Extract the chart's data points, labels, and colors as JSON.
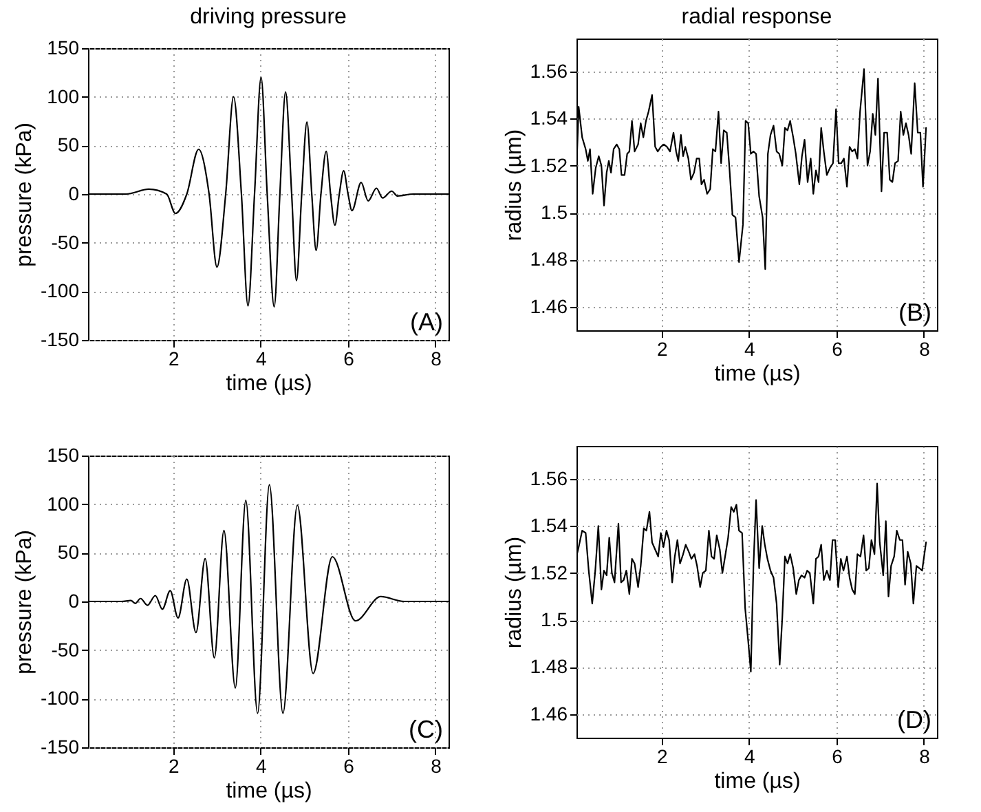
{
  "chart_data": [
    {
      "type": "line",
      "title": "driving pressure",
      "xlabel": "time (µs)",
      "ylabel": "pressure (kPa)",
      "annotations": [
        "(A)"
      ],
      "xlim": [
        0.05,
        8.3
      ],
      "ylim": [
        -150,
        150
      ],
      "xticks": [
        2,
        4,
        6,
        8
      ],
      "yticks": [
        -150,
        -100,
        -50,
        0,
        50,
        100,
        150
      ],
      "grid": true,
      "marker": "none",
      "line_style": "solid",
      "series": [
        {
          "color": "#000000",
          "x": [
            0.05,
            0.92,
            1.44,
            1.85,
            2.05,
            2.31,
            2.58,
            2.82,
            3.0,
            3.2,
            3.38,
            3.56,
            3.71,
            3.86,
            4.01,
            4.15,
            4.31,
            4.44,
            4.57,
            4.71,
            4.82,
            4.94,
            5.06,
            5.17,
            5.27,
            5.38,
            5.5,
            5.6,
            5.7,
            5.8,
            5.9,
            6.0,
            6.09,
            6.3,
            6.46,
            6.65,
            6.79,
            7.0,
            7.13,
            7.49,
            8.3
          ],
          "values": [
            0,
            0,
            5,
            0,
            -20,
            0,
            46,
            0,
            -75,
            0,
            100,
            0,
            -115,
            0,
            120,
            0,
            -116,
            0,
            105,
            0,
            -89,
            0,
            74,
            0,
            -58,
            0,
            44,
            0,
            -32,
            0,
            24,
            0,
            -17,
            12,
            -7,
            6,
            -4,
            3,
            -2,
            0,
            0
          ]
        }
      ]
    },
    {
      "type": "line",
      "title": "radial response",
      "xlabel": "time (µs)",
      "ylabel": "radius (µm)",
      "annotations": [
        "(B)"
      ],
      "xlim": [
        0.05,
        8.3
      ],
      "ylim": [
        1.45,
        1.574
      ],
      "xticks": [
        2,
        4,
        6,
        8
      ],
      "yticks": [
        1.46,
        1.48,
        1.5,
        1.52,
        1.54,
        1.56
      ],
      "grid": true,
      "marker": "none",
      "line_style": "solid",
      "series": [
        {
          "color": "#000000",
          "x": [
            0.05,
            0.1,
            0.18,
            0.26,
            0.31,
            0.36,
            0.42,
            0.49,
            0.56,
            0.62,
            0.68,
            0.74,
            0.79,
            0.84,
            0.9,
            0.97,
            1.03,
            1.08,
            1.15,
            1.21,
            1.26,
            1.32,
            1.38,
            1.46,
            1.52,
            1.58,
            1.64,
            1.7,
            1.78,
            1.85,
            1.91,
            1.98,
            2.05,
            2.12,
            2.19,
            2.27,
            2.33,
            2.38,
            2.44,
            2.49,
            2.54,
            2.61,
            2.67,
            2.74,
            2.8,
            2.86,
            2.91,
            2.97,
            3.04,
            3.11,
            3.17,
            3.23,
            3.3,
            3.36,
            3.42,
            3.49,
            3.55,
            3.62,
            3.69,
            3.77,
            3.86,
            3.92,
            3.98,
            4.04,
            4.1,
            4.16,
            4.23,
            4.31,
            4.37,
            4.43,
            4.49,
            4.56,
            4.63,
            4.69,
            4.76,
            4.82,
            4.88,
            4.94,
            5.01,
            5.07,
            5.15,
            5.21,
            5.27,
            5.34,
            5.41,
            5.47,
            5.53,
            5.59,
            5.65,
            5.71,
            5.78,
            5.85,
            5.92,
            5.99,
            6.05,
            6.11,
            6.17,
            6.24,
            6.3,
            6.36,
            6.42,
            6.48,
            6.54,
            6.63,
            6.71,
            6.77,
            6.83,
            6.89,
            6.95,
            7.03,
            7.09,
            7.16,
            7.22,
            7.28,
            7.34,
            7.41,
            7.47,
            7.53,
            7.59,
            7.65,
            7.71,
            7.79,
            7.86,
            7.92,
            7.98,
            8.05
          ],
          "values": [
            1.518,
            1.545,
            1.532,
            1.527,
            1.522,
            1.527,
            1.508,
            1.519,
            1.524,
            1.52,
            1.503,
            1.517,
            1.522,
            1.517,
            1.527,
            1.529,
            1.527,
            1.516,
            1.516,
            1.525,
            1.526,
            1.539,
            1.526,
            1.529,
            1.538,
            1.532,
            1.539,
            1.543,
            1.55,
            1.528,
            1.526,
            1.528,
            1.529,
            1.528,
            1.526,
            1.534,
            1.526,
            1.522,
            1.533,
            1.524,
            1.528,
            1.523,
            1.514,
            1.517,
            1.523,
            1.523,
            1.512,
            1.514,
            1.508,
            1.51,
            1.527,
            1.526,
            1.543,
            1.521,
            1.535,
            1.534,
            1.519,
            1.499,
            1.498,
            1.479,
            1.495,
            1.539,
            1.538,
            1.525,
            1.526,
            1.525,
            1.507,
            1.498,
            1.476,
            1.525,
            1.533,
            1.537,
            1.526,
            1.525,
            1.52,
            1.536,
            1.535,
            1.539,
            1.532,
            1.525,
            1.512,
            1.524,
            1.531,
            1.513,
            1.523,
            1.508,
            1.518,
            1.513,
            1.536,
            1.526,
            1.516,
            1.519,
            1.521,
            1.544,
            1.521,
            1.521,
            1.523,
            1.511,
            1.528,
            1.526,
            1.527,
            1.523,
            1.543,
            1.561,
            1.52,
            1.526,
            1.542,
            1.533,
            1.557,
            1.509,
            1.534,
            1.534,
            1.514,
            1.513,
            1.521,
            1.522,
            1.543,
            1.533,
            1.538,
            1.533,
            1.525,
            1.555,
            1.534,
            1.534,
            1.511,
            1.536
          ]
        }
      ]
    },
    {
      "type": "line",
      "xlabel": "time (µs)",
      "ylabel": "pressure (kPa)",
      "annotations": [
        "(C)"
      ],
      "xlim": [
        0.05,
        8.3
      ],
      "ylim": [
        -150,
        150
      ],
      "xticks": [
        2,
        4,
        6,
        8
      ],
      "yticks": [
        -150,
        -100,
        -50,
        0,
        50,
        100,
        150
      ],
      "grid": true,
      "marker": "none",
      "line_style": "solid",
      "series": [
        {
          "color": "#000000",
          "x": [
            0.05,
            0.82,
            1.03,
            1.13,
            1.25,
            1.41,
            1.59,
            1.75,
            1.93,
            2.11,
            2.31,
            2.52,
            2.73,
            2.94,
            3.16,
            3.42,
            3.66,
            3.93,
            4.2,
            4.51,
            4.84,
            5.2,
            5.64,
            6.17,
            6.75,
            7.28,
            8.3
          ],
          "values": [
            0,
            0,
            1,
            -2,
            3,
            -4,
            6,
            -8,
            11,
            -17,
            23,
            -32,
            44,
            -58,
            73,
            -89,
            104,
            -115,
            120,
            -115,
            99,
            -74,
            46,
            -20,
            5,
            0,
            0
          ]
        }
      ]
    },
    {
      "type": "line",
      "xlabel": "time (µs)",
      "ylabel": "radius (µm)",
      "annotations": [
        "(D)"
      ],
      "xlim": [
        0.05,
        8.3
      ],
      "ylim": [
        1.45,
        1.574
      ],
      "xticks": [
        2,
        4,
        6,
        8
      ],
      "yticks": [
        1.46,
        1.48,
        1.5,
        1.52,
        1.54,
        1.56
      ],
      "grid": true,
      "marker": "none",
      "line_style": "solid",
      "series": [
        {
          "color": "#000000",
          "x": [
            0.05,
            0.1,
            0.18,
            0.26,
            0.33,
            0.41,
            0.48,
            0.55,
            0.62,
            0.68,
            0.74,
            0.8,
            0.86,
            0.92,
            1.01,
            1.07,
            1.13,
            1.19,
            1.26,
            1.32,
            1.38,
            1.46,
            1.52,
            1.59,
            1.65,
            1.72,
            1.78,
            1.85,
            1.92,
            1.98,
            2.04,
            2.11,
            2.17,
            2.24,
            2.3,
            2.36,
            2.42,
            2.49,
            2.55,
            2.62,
            2.68,
            2.75,
            2.81,
            2.88,
            2.94,
            3.01,
            3.08,
            3.14,
            3.2,
            3.26,
            3.33,
            3.39,
            3.46,
            3.52,
            3.59,
            3.65,
            3.71,
            3.77,
            3.84,
            3.91,
            3.98,
            4.04,
            4.1,
            4.16,
            4.23,
            4.3,
            4.36,
            4.42,
            4.49,
            4.56,
            4.63,
            4.7,
            4.76,
            4.82,
            4.88,
            4.94,
            5.01,
            5.08,
            5.14,
            5.2,
            5.27,
            5.33,
            5.39,
            5.47,
            5.53,
            5.59,
            5.65,
            5.71,
            5.78,
            5.85,
            5.91,
            5.97,
            6.04,
            6.1,
            6.16,
            6.24,
            6.3,
            6.36,
            6.42,
            6.48,
            6.55,
            6.62,
            6.68,
            6.74,
            6.8,
            6.87,
            6.93,
            6.99,
            7.07,
            7.13,
            7.19,
            7.25,
            7.32,
            7.38,
            7.45,
            7.51,
            7.57,
            7.63,
            7.7,
            7.76,
            7.83,
            7.9,
            7.96,
            8.05
          ],
          "values": [
            1.527,
            1.531,
            1.538,
            1.537,
            1.521,
            1.507,
            1.521,
            1.54,
            1.513,
            1.521,
            1.519,
            1.535,
            1.52,
            1.516,
            1.541,
            1.516,
            1.517,
            1.521,
            1.511,
            1.526,
            1.524,
            1.514,
            1.523,
            1.539,
            1.538,
            1.546,
            1.533,
            1.53,
            1.527,
            1.537,
            1.531,
            1.538,
            1.534,
            1.516,
            1.527,
            1.534,
            1.524,
            1.528,
            1.532,
            1.529,
            1.526,
            1.528,
            1.523,
            1.514,
            1.52,
            1.521,
            1.538,
            1.527,
            1.526,
            1.536,
            1.53,
            1.52,
            1.528,
            1.535,
            1.548,
            1.546,
            1.549,
            1.538,
            1.537,
            1.505,
            1.491,
            1.478,
            1.523,
            1.551,
            1.522,
            1.54,
            1.532,
            1.526,
            1.521,
            1.518,
            1.507,
            1.481,
            1.501,
            1.527,
            1.524,
            1.528,
            1.522,
            1.511,
            1.517,
            1.519,
            1.518,
            1.521,
            1.52,
            1.507,
            1.526,
            1.527,
            1.532,
            1.517,
            1.521,
            1.517,
            1.534,
            1.534,
            1.514,
            1.526,
            1.521,
            1.527,
            1.518,
            1.513,
            1.511,
            1.528,
            1.527,
            1.536,
            1.521,
            1.522,
            1.534,
            1.528,
            1.558,
            1.533,
            1.519,
            1.542,
            1.51,
            1.523,
            1.527,
            1.538,
            1.534,
            1.534,
            1.515,
            1.529,
            1.524,
            1.507,
            1.523,
            1.522,
            1.521,
            1.533
          ]
        }
      ]
    }
  ]
}
